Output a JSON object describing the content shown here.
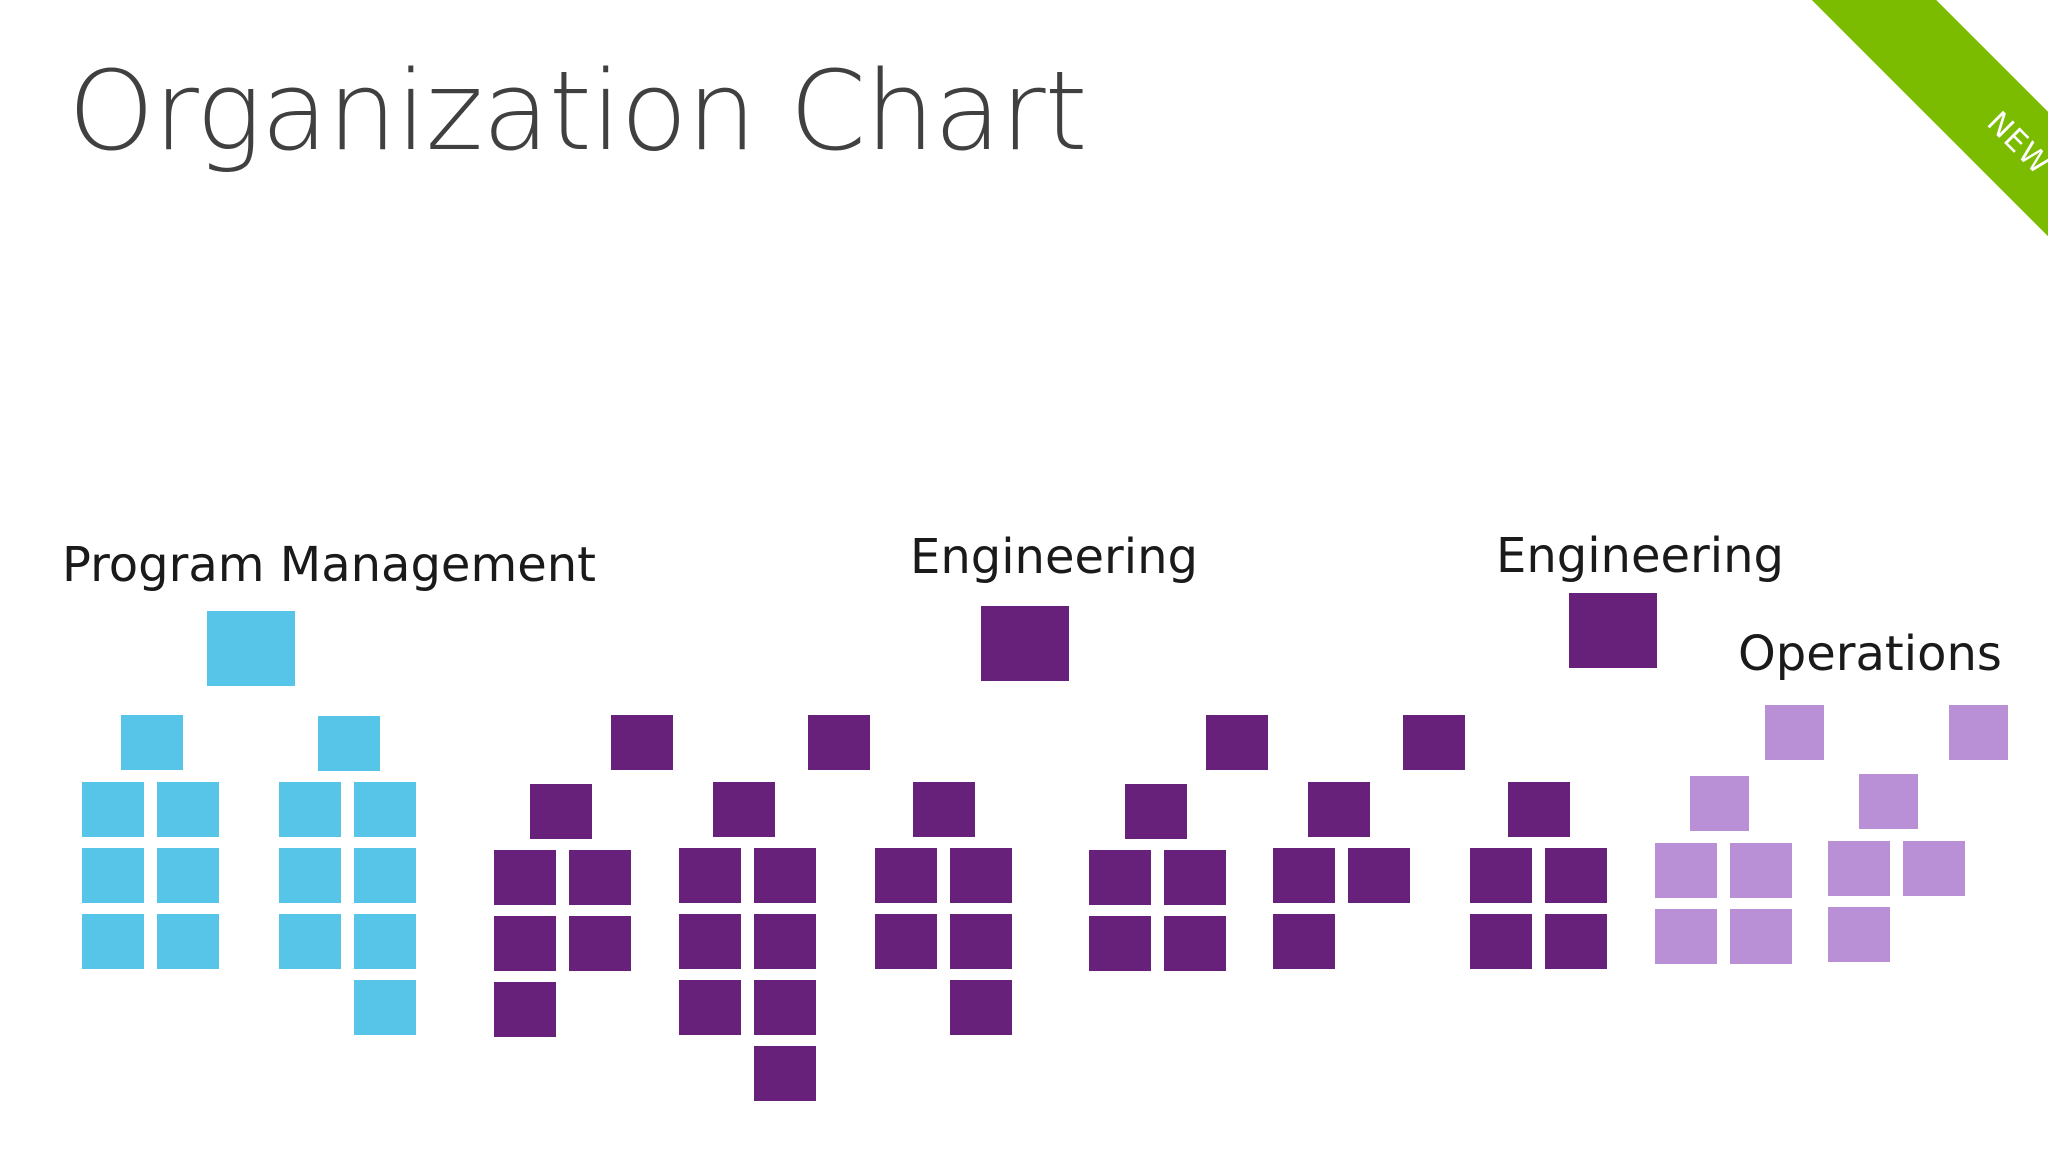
{
  "title": "Organization Chart",
  "badge": "NEW",
  "colors": {
    "program_management": "#56c5e8",
    "engineering": "#68217a",
    "operations": "#b98fd6",
    "badge_green": "#7bbb00",
    "title_text": "#404040"
  },
  "groups": [
    {
      "id": "program_management",
      "label": "Program Management",
      "color_key": "program_management"
    },
    {
      "id": "engineering_1",
      "label": "Engineering",
      "color_key": "engineering"
    },
    {
      "id": "engineering_2",
      "label": "Engineering",
      "color_key": "engineering"
    },
    {
      "id": "operations",
      "label": "Operations",
      "color_key": "operations"
    }
  ]
}
